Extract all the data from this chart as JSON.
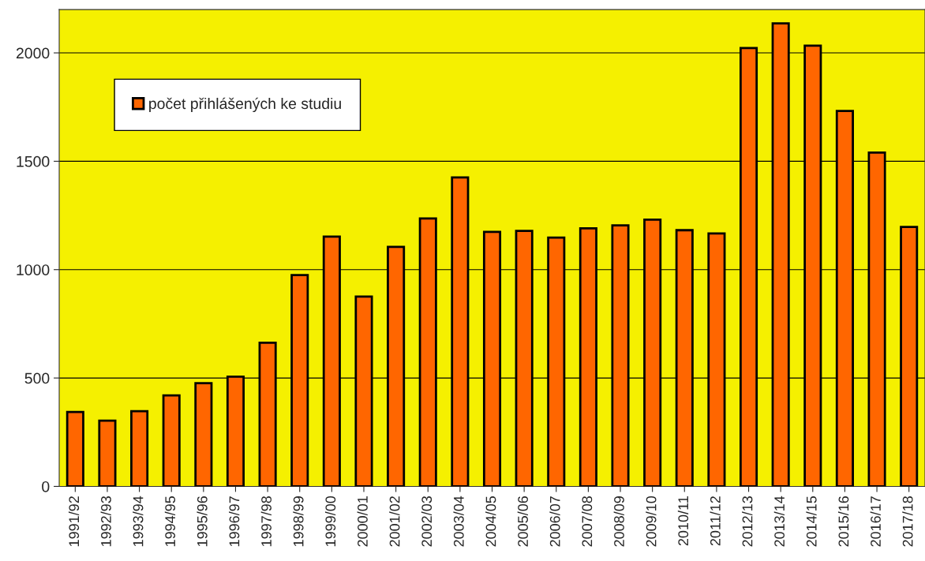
{
  "chart_data": {
    "type": "bar",
    "categories": [
      "1991/92",
      "1992/93",
      "1993/94",
      "1994/95",
      "1995/96",
      "1996/97",
      "1997/98",
      "1998/99",
      "1999/00",
      "2000/01",
      "2001/02",
      "2002/03",
      "2003/04",
      "2004/05",
      "2005/06",
      "2006/07",
      "2007/08",
      "2008/09",
      "2009/10",
      "2010/11",
      "2011/12",
      "2012/13",
      "2013/14",
      "2014/15",
      "2015/16",
      "2016/17",
      "2017/18"
    ],
    "series": [
      {
        "name": "počet přihlášených ke studiu",
        "color": "#ff6600",
        "values": [
          343,
          303,
          347,
          420,
          476,
          506,
          663,
          975,
          1152,
          876,
          1105,
          1236,
          1425,
          1174,
          1179,
          1148,
          1191,
          1204,
          1231,
          1182,
          1167,
          2022,
          2136,
          2033,
          1732,
          1540,
          1197
        ]
      }
    ],
    "ylim": [
      0,
      2200
    ],
    "yticks": [
      0,
      500,
      1000,
      1500,
      2000
    ],
    "grid": "y",
    "legend": "top left"
  }
}
